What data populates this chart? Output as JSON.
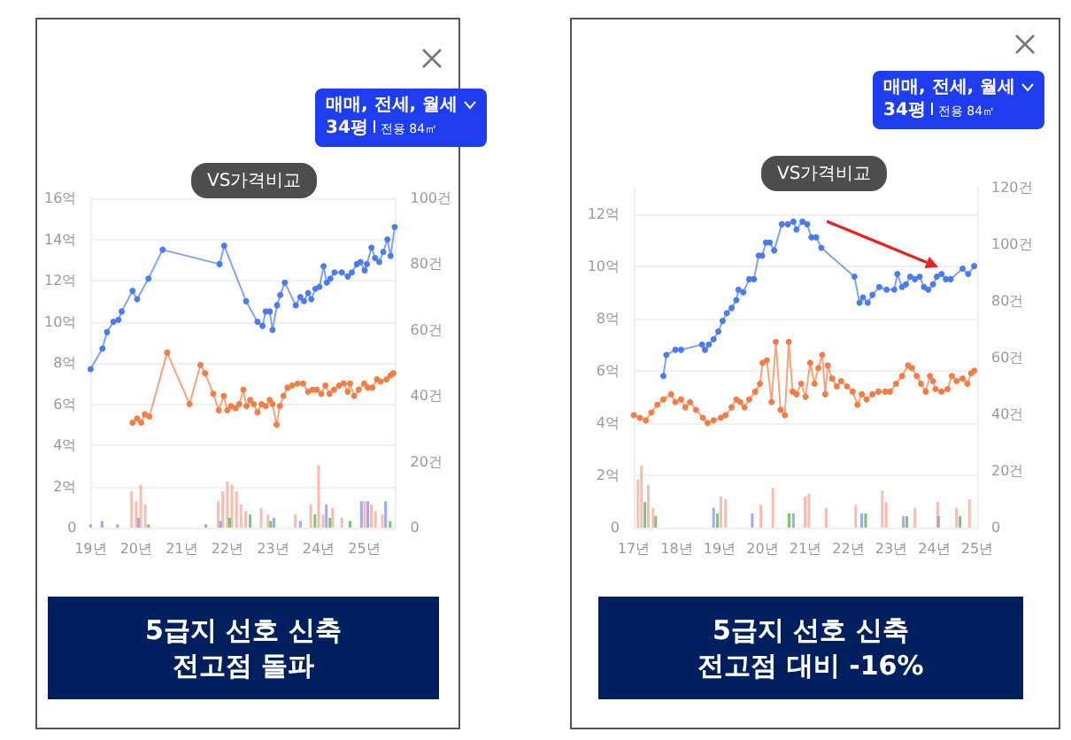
{
  "chart_data": [
    {
      "type": "line",
      "annotations": [
        "VS가격비교",
        "매매, 전세, 월세",
        "34평",
        "전용 84㎡",
        "5급지 선호 신축\n전고점 돌파"
      ],
      "xlim": [
        19,
        25.7
      ],
      "xticks": [
        {
          "value": 19,
          "label": "19년"
        },
        {
          "value": 20,
          "label": "20년"
        },
        {
          "value": 21,
          "label": "21년"
        },
        {
          "value": 22,
          "label": "22년"
        },
        {
          "value": 23,
          "label": "23년"
        },
        {
          "value": 24,
          "label": "24년"
        },
        {
          "value": 25,
          "label": "25년"
        }
      ],
      "ylim": [
        0,
        16
      ],
      "yticks": [
        {
          "value": 0,
          "label": "0"
        },
        {
          "value": 2,
          "label": "2억"
        },
        {
          "value": 4,
          "label": "4억"
        },
        {
          "value": 6,
          "label": "6억"
        },
        {
          "value": 8,
          "label": "8억"
        },
        {
          "value": 10,
          "label": "10억"
        },
        {
          "value": 12,
          "label": "12억"
        },
        {
          "value": 14,
          "label": "14억"
        },
        {
          "value": 16,
          "label": "16억"
        }
      ],
      "y2lim": [
        0,
        100
      ],
      "y2ticks": [
        {
          "value": 0,
          "label": "0"
        },
        {
          "value": 20,
          "label": "20건"
        },
        {
          "value": 40,
          "label": "40건"
        },
        {
          "value": 60,
          "label": "60건"
        },
        {
          "value": 80,
          "label": "80건"
        },
        {
          "value": 100,
          "label": "100건"
        }
      ],
      "grid": "y",
      "marker": "circle",
      "line_style": "solid",
      "series": [
        {
          "type": "bar",
          "axis": "y2",
          "color": "#f7b0a2",
          "x": [
            19.9,
            20.0,
            20.1,
            20.2,
            21.8,
            21.9,
            22.0,
            22.1,
            22.2,
            22.3,
            22.4,
            22.74,
            22.89,
            23.49,
            23.83,
            24.0,
            24.1,
            24.31,
            24.51,
            25.01,
            25.16,
            25.25,
            25.4
          ],
          "values": [
            11,
            8,
            13,
            7,
            8,
            11,
            14,
            13,
            11,
            7,
            5,
            6,
            4,
            4,
            7,
            19,
            4,
            6,
            3,
            8,
            7,
            5,
            4
          ]
        },
        {
          "type": "bar",
          "axis": "y2",
          "color": "#8c9cf2",
          "x": [
            19.0,
            19.25,
            19.59,
            20.05,
            21.85,
            23.02,
            23.6,
            24.17,
            24.94,
            25.08,
            25.47
          ],
          "values": [
            1,
            2,
            1,
            3,
            2,
            3,
            2,
            7,
            8,
            8,
            8
          ]
        },
        {
          "type": "bar",
          "axis": "y2",
          "color": "#5cbf5c",
          "x": [
            20.27,
            21.53,
            22.05,
            22.5,
            22.95,
            23.92,
            24.25,
            24.69,
            25.57
          ],
          "values": [
            1,
            1,
            3,
            4,
            2,
            4,
            3,
            2,
            2
          ]
        },
        {
          "color": "#4a7cf0",
          "x": [
            19.0,
            19.26,
            19.36,
            19.5,
            19.61,
            19.68,
            19.92,
            20.02,
            20.27,
            20.58,
            21.83,
            21.93,
            22.41,
            22.66,
            22.77,
            22.84,
            22.93,
            22.99,
            23.09,
            23.16,
            23.26,
            23.5,
            23.6,
            23.68,
            23.77,
            23.84,
            23.93,
            24.02,
            24.11,
            24.18,
            24.26,
            24.35,
            24.51,
            24.64,
            24.73,
            24.84,
            24.92,
            25.01,
            25.06,
            25.16,
            25.24,
            25.33,
            25.42,
            25.51,
            25.58,
            25.67
          ],
          "values": [
            7.7,
            8.7,
            9.5,
            10.0,
            10.1,
            10.5,
            11.5,
            11.1,
            12.1,
            13.5,
            12.8,
            13.7,
            11.0,
            10.0,
            9.8,
            10.5,
            10.5,
            9.6,
            10.8,
            11.3,
            11.9,
            10.8,
            11.2,
            11.0,
            11.4,
            11.1,
            11.6,
            11.7,
            12.7,
            11.9,
            12.1,
            12.4,
            12.4,
            12.2,
            12.4,
            12.8,
            12.9,
            12.5,
            12.8,
            13.6,
            13.1,
            12.9,
            13.4,
            14.0,
            13.2,
            14.6
          ]
        },
        {
          "color": "#f47d45",
          "x": [
            19.92,
            20.02,
            20.11,
            20.19,
            20.29,
            20.68,
            21.17,
            21.41,
            21.51,
            21.69,
            21.81,
            21.92,
            22.0,
            22.08,
            22.18,
            22.26,
            22.35,
            22.42,
            22.5,
            22.58,
            22.66,
            22.75,
            22.84,
            22.93,
            22.99,
            23.08,
            23.15,
            23.23,
            23.32,
            23.42,
            23.54,
            23.66,
            23.77,
            23.87,
            23.96,
            24.06,
            24.15,
            24.24,
            24.34,
            24.45,
            24.55,
            24.64,
            24.69,
            24.78,
            24.88,
            25.0,
            25.08,
            25.18,
            25.28,
            25.36,
            25.49,
            25.58,
            25.64
          ],
          "values": [
            5.1,
            5.3,
            5.1,
            5.5,
            5.4,
            8.5,
            6.0,
            7.9,
            7.5,
            6.5,
            5.7,
            6.4,
            5.7,
            5.9,
            5.8,
            6.0,
            6.7,
            5.9,
            6.2,
            6.0,
            5.6,
            6.0,
            5.9,
            6.2,
            6.0,
            5.0,
            5.9,
            6.4,
            6.8,
            6.9,
            7.0,
            7.0,
            6.6,
            6.7,
            6.7,
            6.5,
            6.9,
            6.5,
            6.7,
            6.9,
            7.0,
            6.6,
            7.0,
            6.4,
            6.7,
            7.0,
            6.8,
            6.8,
            7.2,
            7.1,
            7.2,
            7.4,
            7.5
          ]
        }
      ]
    },
    {
      "type": "line",
      "annotations": [
        "VS가격비교",
        "매매, 전세, 월세",
        "34평",
        "전용 84㎡",
        "5급지 선호 신축\n전고점 대비 -16%"
      ],
      "xlim": [
        17,
        25
      ],
      "xticks": [
        {
          "value": 17,
          "label": "17년"
        },
        {
          "value": 18,
          "label": "18년"
        },
        {
          "value": 19,
          "label": "19년"
        },
        {
          "value": 20,
          "label": "20년"
        },
        {
          "value": 21,
          "label": "21년"
        },
        {
          "value": 22,
          "label": "22년"
        },
        {
          "value": 23,
          "label": "23년"
        },
        {
          "value": 24,
          "label": "24년"
        },
        {
          "value": 25,
          "label": "25년"
        }
      ],
      "ylim": [
        0,
        13
      ],
      "yticks": [
        {
          "value": 0,
          "label": "0"
        },
        {
          "value": 2,
          "label": "2억"
        },
        {
          "value": 4,
          "label": "4억"
        },
        {
          "value": 6,
          "label": "6억"
        },
        {
          "value": 8,
          "label": "8억"
        },
        {
          "value": 10,
          "label": "10억"
        },
        {
          "value": 12,
          "label": "12억"
        }
      ],
      "y2lim": [
        0,
        120
      ],
      "y2ticks": [
        {
          "value": 0,
          "label": "0"
        },
        {
          "value": 20,
          "label": "20건"
        },
        {
          "value": 40,
          "label": "40건"
        },
        {
          "value": 60,
          "label": "60건"
        },
        {
          "value": 80,
          "label": "80건"
        },
        {
          "value": 100,
          "label": "100건"
        },
        {
          "value": 120,
          "label": "120건"
        }
      ],
      "grid": "y",
      "marker": "circle",
      "line_style": "solid",
      "series": [
        {
          "type": "bar",
          "axis": "y2",
          "color": "#f7b0a2",
          "x": [
            17.1,
            17.18,
            17.34,
            17.45,
            19.03,
            19.14,
            19.96,
            20.24,
            20.99,
            21.08,
            21.48,
            22.17,
            22.79,
            22.88,
            23.55,
            24.08,
            24.52,
            24.82
          ],
          "values": [
            17,
            22,
            15,
            7,
            11,
            10,
            8,
            14,
            11,
            12,
            7,
            8,
            13,
            9,
            7,
            9,
            7,
            10
          ]
        },
        {
          "type": "bar",
          "axis": "y2",
          "color": "#8c9cf2",
          "x": [
            18.86,
            19.76,
            20.72,
            22.31,
            23.28,
            24.1
          ],
          "values": [
            7,
            5,
            5,
            5,
            4,
            4
          ]
        },
        {
          "type": "bar",
          "axis": "y2",
          "color": "#5cbf5c",
          "x": [
            17.26,
            17.51,
            18.95,
            20.62,
            22.4,
            23.36,
            24.6
          ],
          "values": [
            9,
            4,
            5,
            5,
            5,
            4,
            4
          ]
        },
        {
          "color": "#4a7cf0",
          "x": [
            17.69,
            17.76,
            17.97,
            18.1,
            18.59,
            18.66,
            18.75,
            18.86,
            18.97,
            19.07,
            19.17,
            19.28,
            19.39,
            19.44,
            19.55,
            19.69,
            19.8,
            19.91,
            19.99,
            20.08,
            20.17,
            20.27,
            20.45,
            20.59,
            20.72,
            20.79,
            20.93,
            21.04,
            21.14,
            21.25,
            21.37,
            22.14,
            22.26,
            22.34,
            22.45,
            22.56,
            22.72,
            22.89,
            23.07,
            23.14,
            23.25,
            23.34,
            23.44,
            23.55,
            23.66,
            23.76,
            23.86,
            23.97,
            24.06,
            24.17,
            24.27,
            24.38,
            24.66,
            24.79,
            24.93
          ],
          "values": [
            5.8,
            6.6,
            6.8,
            6.8,
            7.0,
            6.8,
            7.0,
            7.2,
            7.5,
            7.9,
            8.2,
            8.4,
            8.7,
            9.1,
            9.0,
            9.5,
            9.5,
            10.4,
            10.4,
            10.9,
            10.9,
            10.6,
            11.6,
            11.6,
            11.7,
            11.4,
            11.7,
            11.6,
            11.1,
            11.1,
            10.7,
            9.6,
            8.6,
            8.8,
            8.6,
            8.9,
            9.2,
            9.1,
            9.1,
            9.7,
            9.2,
            9.3,
            9.6,
            9.5,
            9.6,
            9.2,
            9.1,
            9.3,
            9.6,
            9.7,
            9.5,
            9.5,
            9.9,
            9.7,
            10.0
          ]
        },
        {
          "color": "#f47d45",
          "x": [
            17.0,
            17.14,
            17.28,
            17.41,
            17.55,
            17.69,
            17.87,
            17.97,
            18.1,
            18.2,
            18.31,
            18.45,
            18.61,
            18.72,
            18.86,
            19.03,
            19.14,
            19.28,
            19.39,
            19.48,
            19.58,
            19.69,
            19.83,
            19.94,
            20.0,
            20.1,
            20.21,
            20.31,
            20.42,
            20.52,
            20.61,
            20.7,
            20.79,
            20.9,
            21.0,
            21.11,
            21.21,
            21.3,
            21.39,
            21.46,
            21.52,
            21.62,
            21.73,
            21.83,
            21.97,
            22.1,
            22.21,
            22.31,
            22.42,
            22.56,
            22.7,
            22.86,
            22.97,
            23.11,
            23.25,
            23.39,
            23.48,
            23.59,
            23.69,
            23.8,
            23.9,
            23.97,
            24.03,
            24.17,
            24.31,
            24.41,
            24.52,
            24.66,
            24.77,
            24.86,
            24.93
          ],
          "values": [
            4.3,
            4.2,
            4.1,
            4.4,
            4.7,
            4.9,
            5.1,
            4.8,
            4.9,
            4.6,
            4.8,
            4.5,
            4.2,
            4.0,
            4.1,
            4.2,
            4.3,
            4.6,
            4.9,
            4.8,
            4.6,
            4.9,
            5.2,
            5.5,
            6.3,
            6.4,
            4.8,
            7.1,
            4.5,
            4.3,
            7.1,
            5.2,
            5.1,
            5.5,
            5.0,
            6.3,
            5.5,
            6.1,
            6.6,
            5.1,
            6.2,
            5.7,
            5.4,
            5.6,
            5.4,
            5.2,
            4.7,
            5.1,
            4.9,
            5.1,
            5.2,
            5.2,
            5.2,
            5.5,
            5.8,
            6.2,
            6.1,
            5.8,
            5.5,
            5.2,
            5.8,
            5.6,
            5.3,
            5.2,
            5.3,
            5.8,
            5.6,
            5.7,
            5.5,
            5.9,
            6.0
          ]
        }
      ]
    }
  ]
}
